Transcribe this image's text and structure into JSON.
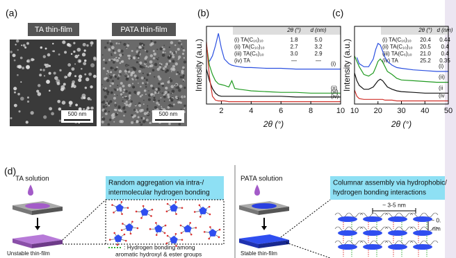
{
  "panels": {
    "a": "(a)",
    "b": "(b)",
    "c": "(c)",
    "d": "(d)"
  },
  "sem": {
    "left_label": "TA thin-film",
    "right_label": "PATA thin-film",
    "scale_left": "500 nm",
    "scale_right": "500 nm"
  },
  "chart_data": [
    {
      "type": "line",
      "x_label": "2θ (°)",
      "y_label": "Intensity (a.u.)",
      "xlim": [
        1,
        10
      ],
      "xticks": [
        2,
        4,
        6,
        8,
        10
      ],
      "ylim": [
        0,
        100
      ],
      "x": [
        1.0,
        1.2,
        1.4,
        1.6,
        1.8,
        2.0,
        2.2,
        2.5,
        2.7,
        2.9,
        3.2,
        3.6,
        4,
        5,
        6,
        7,
        8,
        9,
        10
      ],
      "series": [
        {
          "name": "(i)",
          "color": "#2a4fe0",
          "values": [
            null,
            55,
            62,
            75,
            91,
            72,
            58,
            52,
            50,
            49,
            48,
            47,
            47,
            46,
            46,
            45,
            45,
            45,
            45
          ]
        },
        {
          "name": "(ii)",
          "color": "#1f9a1f",
          "values": [
            76,
            50,
            38,
            30,
            26,
            25,
            24,
            22,
            30,
            20,
            19,
            18,
            17,
            16,
            15,
            15,
            14,
            14,
            14
          ]
        },
        {
          "name": "(iii)",
          "color": "#111111",
          "values": [
            45,
            30,
            20,
            14,
            11,
            10,
            10,
            10,
            10,
            10,
            10,
            10,
            10,
            10,
            10,
            9,
            9,
            9,
            9
          ]
        },
        {
          "name": "(iv)",
          "color": "#d0302a",
          "values": [
            80,
            35,
            10,
            5,
            4,
            4,
            4,
            3,
            3,
            3,
            3,
            3,
            3,
            3,
            3,
            3,
            3,
            3,
            3
          ]
        }
      ],
      "table": {
        "columns": [
          "2θ (°)",
          "d (nm)"
        ],
        "rows": [
          [
            "(i) TA(C₁₆)₁₀",
            "1.8",
            "5.0"
          ],
          [
            "(ii) TA(C₁₀)₁₀",
            "2.7",
            "3.2"
          ],
          [
            "(iii) TA(C₆)₁₀",
            "3.0",
            "2.9"
          ],
          [
            "(iv) TA",
            "—",
            "—"
          ]
        ]
      }
    },
    {
      "type": "line",
      "x_label": "2θ (°)",
      "y_label": "Intensity (a.u.)",
      "xlim": [
        10,
        50
      ],
      "xticks": [
        10,
        20,
        30,
        40,
        50
      ],
      "ylim": [
        0,
        100
      ],
      "x": [
        10,
        11,
        12,
        14,
        16,
        18,
        19,
        20,
        21,
        22,
        23,
        24,
        26,
        28,
        30,
        35,
        40,
        45,
        50
      ],
      "series": [
        {
          "name": "(i)",
          "color": "#2a4fe0",
          "values": [
            null,
            60,
            52,
            48,
            48,
            58,
            70,
            78,
            76,
            68,
            60,
            55,
            50,
            47,
            46,
            44,
            43,
            42,
            42
          ]
        },
        {
          "name": "(ii)",
          "color": "#1f9a1f",
          "values": [
            62,
            55,
            48,
            38,
            36,
            40,
            47,
            55,
            58,
            54,
            48,
            42,
            38,
            33,
            31,
            30,
            29,
            28,
            28
          ]
        },
        {
          "name": "(ii",
          "color": "#111111",
          "values": [
            40,
            30,
            24,
            19,
            19,
            22,
            26,
            30,
            32,
            30,
            26,
            22,
            19,
            17,
            16,
            15,
            14,
            14,
            14
          ]
        },
        {
          "name": "(iv",
          "color": "#d0302a",
          "values": [
            18,
            10,
            7,
            6,
            6,
            6,
            6,
            6,
            6,
            6,
            5,
            5,
            5,
            4,
            4,
            4,
            4,
            4,
            4
          ]
        }
      ],
      "table": {
        "columns": [
          "2θ (°)",
          "d (nm)"
        ],
        "rows": [
          [
            "(i) TA(C₁₆)₁₀",
            "20.4",
            "0.44"
          ],
          [
            "(ii) TA(C₁₀)₁₀",
            "20.5",
            "0.4"
          ],
          [
            "(iii) TA(C₆)₁₀",
            "21.0",
            "0.4"
          ],
          [
            "(iv) TA",
            "25.2",
            "0.35"
          ]
        ]
      }
    }
  ],
  "schematic": {
    "ta_solution": "TA solution",
    "ta_box": [
      "Random aggregation via intra-/",
      "intermolecular hydrogen bonding"
    ],
    "ta_film": "Unstable thin-film",
    "legend": [
      ": Hydrogen bonding among",
      "aromatic hydroxyl & ester groups"
    ],
    "pata_solution": "PATA solution",
    "pata_box": [
      "Columnar assembly via hydrophobic/",
      "hydrogen bonding interactions"
    ],
    "pata_film": "Stable thin-film",
    "spacing": "~ 3-5 nm",
    "layer": [
      "~ 0.",
      "nm"
    ]
  }
}
